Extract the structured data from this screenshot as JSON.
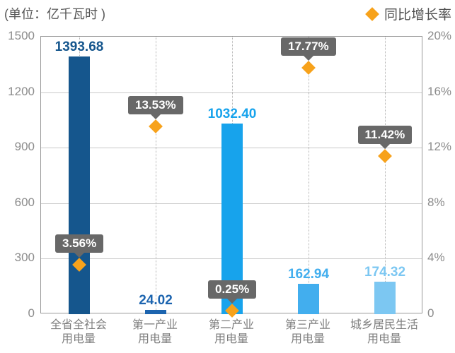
{
  "header": {
    "unit_label": "(单位：亿千瓦时 )",
    "legend": {
      "label": "同比增长率"
    }
  },
  "chart_data": {
    "type": "bar",
    "title": "",
    "legend_position": "top-right",
    "categories": [
      "全省全社会\n用电量",
      "第一产业\n用电量",
      "第二产业\n用电量",
      "第三产业\n用电量",
      "城乡居民生活\n用电量"
    ],
    "category_slugs": [
      "total-society",
      "primary-industry",
      "secondary-industry",
      "tertiary-industry",
      "urban-rural-residential"
    ],
    "series": [
      {
        "name": "用电量",
        "type": "bar",
        "axis": "left",
        "values": [
          1393.68,
          24.02,
          1032.4,
          162.94,
          174.32
        ],
        "labels": [
          "1393.68",
          "24.02",
          "1032.40",
          "162.94",
          "174.32"
        ],
        "colors": [
          "#15568D",
          "#1C64AF",
          "#17A3EC",
          "#42AEEE",
          "#7CC7F2"
        ]
      },
      {
        "name": "同比增长率",
        "type": "scatter",
        "marker": "diamond",
        "axis": "right",
        "values": [
          3.56,
          13.53,
          0.25,
          17.77,
          11.42
        ],
        "labels": [
          "3.56%",
          "13.53%",
          "0.25%",
          "17.77%",
          "11.42%"
        ],
        "marker_color": "#F7A21B",
        "callout_bg": "#686868",
        "callout_text_color": "#FFFFFF"
      }
    ],
    "left_axis": {
      "min": 0,
      "max": 1500,
      "ticks": [
        {
          "value": 0,
          "label": "0"
        },
        {
          "value": 300,
          "label": "300"
        },
        {
          "value": 600,
          "label": "600"
        },
        {
          "value": 900,
          "label": "900"
        },
        {
          "value": 1200,
          "label": "1200"
        },
        {
          "value": 1500,
          "label": "1500"
        }
      ]
    },
    "right_axis": {
      "min": 0,
      "max": 20,
      "ticks": [
        {
          "value": 0,
          "label": "0"
        },
        {
          "value": 4,
          "label": "4%"
        },
        {
          "value": 8,
          "label": "8%"
        },
        {
          "value": 12,
          "label": "12%"
        },
        {
          "value": 16,
          "label": "16%"
        },
        {
          "value": 20,
          "label": "20%"
        }
      ]
    },
    "grid": {
      "horizontal": true,
      "vertical_dotted_per_category": true
    }
  },
  "colors": {
    "legend_marker": "#F7A21B",
    "axis_border": "#999999",
    "gridline": "#C9C9C9",
    "dotted_line": "#B3B3B3",
    "axis_tick_text": "#8C8C8C",
    "category_text": "#7D7D7D",
    "header_text": "#565656"
  }
}
